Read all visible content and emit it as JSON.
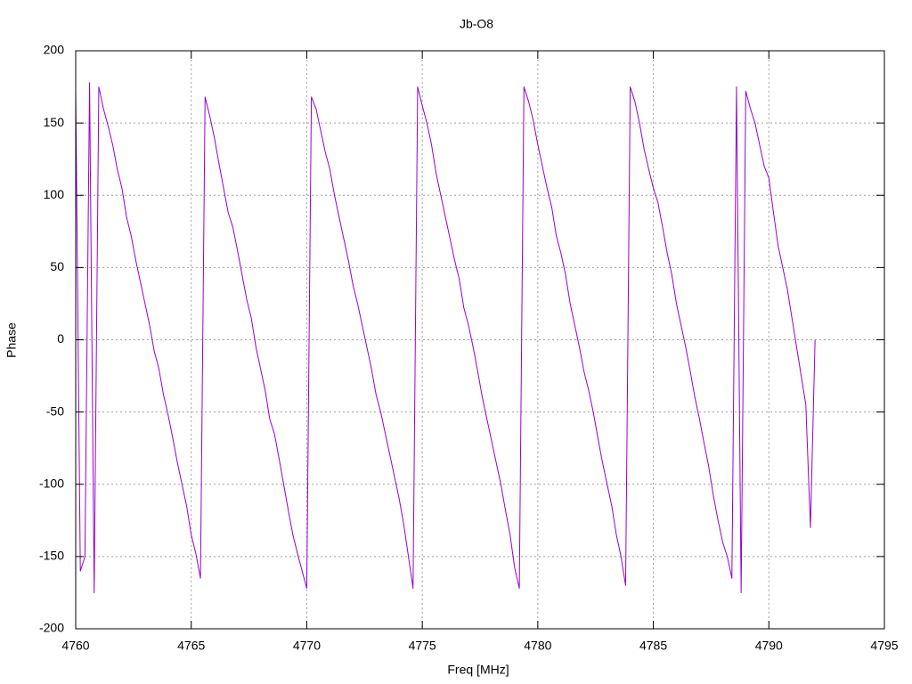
{
  "chart_data": {
    "type": "line",
    "title": "Jb-O8",
    "xlabel": "Freq [MHz]",
    "ylabel": "Phase",
    "xlim": [
      4760,
      4795
    ],
    "xticks": [
      4760,
      4765,
      4770,
      4775,
      4780,
      4785,
      4790,
      4795
    ],
    "ylim": [
      -200,
      200
    ],
    "yticks": [
      -200,
      -150,
      -100,
      -50,
      0,
      50,
      100,
      150,
      200
    ],
    "grid": true,
    "series": [
      {
        "color": "#9400d3",
        "x": [
          4760.0,
          4760.2,
          4760.4,
          4760.6,
          4760.8,
          4761.0,
          4761.2,
          4761.4,
          4761.6,
          4761.8,
          4762.0,
          4762.2,
          4762.4,
          4762.6,
          4762.8,
          4763.0,
          4763.2,
          4763.4,
          4763.6,
          4763.8,
          4764.0,
          4764.2,
          4764.4,
          4764.6,
          4764.8,
          4765.0,
          4765.2,
          4765.4,
          4765.6,
          4765.8,
          4766.0,
          4766.2,
          4766.4,
          4766.6,
          4766.8,
          4767.0,
          4767.2,
          4767.4,
          4767.6,
          4767.8,
          4768.0,
          4768.2,
          4768.4,
          4768.6,
          4768.8,
          4769.0,
          4769.2,
          4769.4,
          4769.6,
          4769.8,
          4770.0,
          4770.2,
          4770.4,
          4770.6,
          4770.8,
          4771.0,
          4771.2,
          4771.4,
          4771.6,
          4771.8,
          4772.0,
          4772.2,
          4772.4,
          4772.6,
          4772.8,
          4773.0,
          4773.2,
          4773.4,
          4773.6,
          4773.8,
          4774.0,
          4774.2,
          4774.4,
          4774.6,
          4774.8,
          4775.0,
          4775.2,
          4775.4,
          4775.6,
          4775.8,
          4776.0,
          4776.2,
          4776.4,
          4776.6,
          4776.8,
          4777.0,
          4777.2,
          4777.4,
          4777.6,
          4777.8,
          4778.0,
          4778.2,
          4778.4,
          4778.6,
          4778.8,
          4779.0,
          4779.2,
          4779.4,
          4779.6,
          4779.8,
          4780.0,
          4780.2,
          4780.4,
          4780.6,
          4780.8,
          4781.0,
          4781.2,
          4781.4,
          4781.6,
          4781.8,
          4782.0,
          4782.2,
          4782.4,
          4782.6,
          4782.8,
          4783.0,
          4783.2,
          4783.4,
          4783.6,
          4783.8,
          4784.0,
          4784.2,
          4784.4,
          4784.6,
          4784.8,
          4785.0,
          4785.2,
          4785.4,
          4785.6,
          4785.8,
          4786.0,
          4786.2,
          4786.4,
          4786.6,
          4786.8,
          4787.0,
          4787.2,
          4787.4,
          4787.6,
          4787.8,
          4788.0,
          4788.2,
          4788.4,
          4788.6,
          4788.8,
          4789.0,
          4789.2,
          4789.4,
          4789.6,
          4789.8,
          4790.0,
          4790.2,
          4790.4,
          4790.6,
          4790.8,
          4791.0,
          4791.2,
          4791.4,
          4791.6,
          4791.8,
          4792.0
        ],
        "values": [
          172,
          -160,
          -150,
          178,
          -175,
          175,
          160,
          148,
          135,
          118,
          105,
          85,
          72,
          55,
          40,
          25,
          10,
          -8,
          -20,
          -38,
          -52,
          -68,
          -85,
          -100,
          -115,
          -135,
          -148,
          -165,
          168,
          155,
          140,
          122,
          105,
          88,
          78,
          62,
          45,
          28,
          15,
          -5,
          -20,
          -35,
          -55,
          -65,
          -82,
          -100,
          -118,
          -135,
          -148,
          -160,
          -172,
          168,
          160,
          145,
          130,
          118,
          100,
          85,
          70,
          55,
          38,
          25,
          10,
          -5,
          -20,
          -38,
          -50,
          -65,
          -80,
          -95,
          -110,
          -128,
          -150,
          -172,
          175,
          162,
          150,
          135,
          115,
          100,
          85,
          70,
          55,
          42,
          22,
          10,
          -5,
          -22,
          -40,
          -55,
          -70,
          -85,
          -100,
          -118,
          -135,
          -158,
          -172,
          175,
          165,
          152,
          135,
          120,
          105,
          92,
          72,
          60,
          45,
          25,
          10,
          -5,
          -22,
          -35,
          -50,
          -68,
          -85,
          -100,
          -115,
          -135,
          -150,
          -170,
          175,
          165,
          150,
          132,
          118,
          105,
          95,
          78,
          60,
          45,
          25,
          10,
          -5,
          -22,
          -40,
          -55,
          -72,
          -88,
          -108,
          -125,
          -140,
          -150,
          -165,
          175,
          -175,
          172,
          160,
          150,
          135,
          120,
          112,
          88,
          65,
          50,
          35,
          15,
          -5,
          -25,
          -45,
          -130,
          0
        ]
      }
    ]
  }
}
